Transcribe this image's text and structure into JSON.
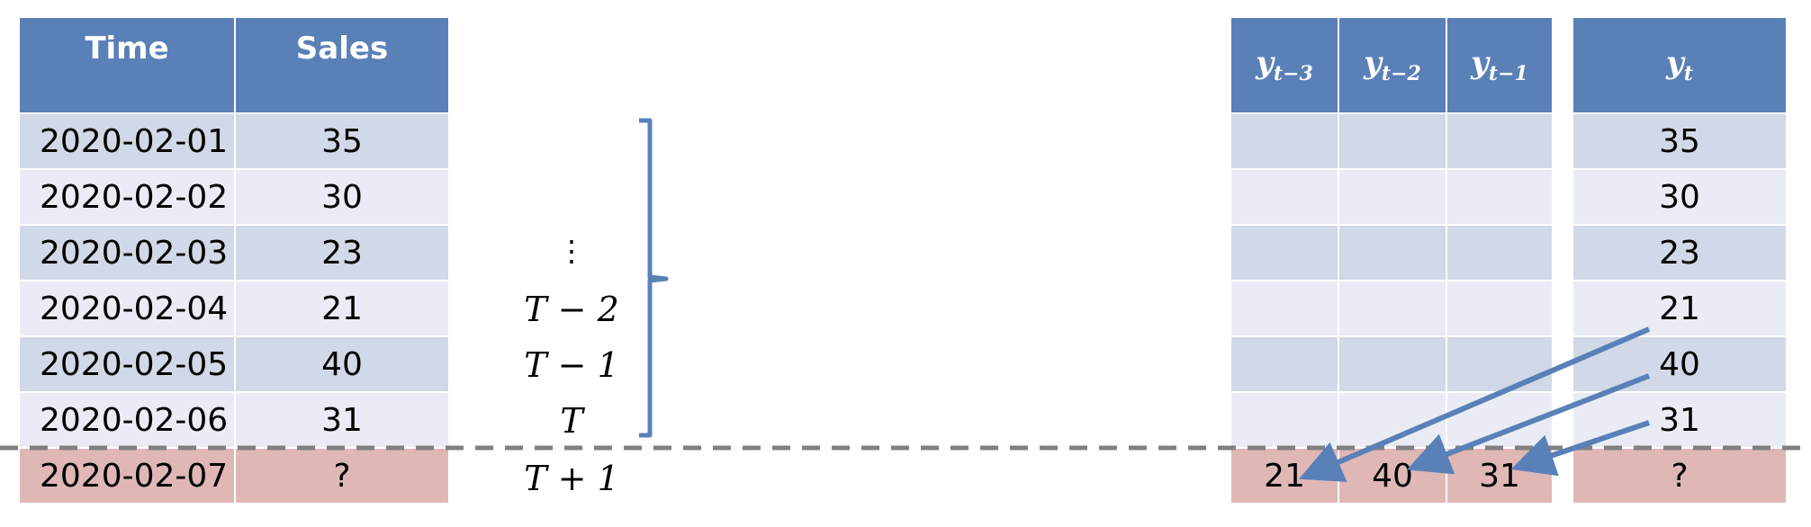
{
  "left_table": {
    "headers": [
      "Time",
      "Sales"
    ],
    "rows": [
      {
        "time": "2020-02-01",
        "sales": "35"
      },
      {
        "time": "2020-02-02",
        "sales": "30"
      },
      {
        "time": "2020-02-03",
        "sales": "23"
      },
      {
        "time": "2020-02-04",
        "sales": "21"
      },
      {
        "time": "2020-02-05",
        "sales": "40"
      },
      {
        "time": "2020-02-06",
        "sales": "31"
      }
    ],
    "forecast_row": {
      "time": "2020-02-07",
      "sales": "?"
    }
  },
  "index_labels": {
    "dots": "⋮",
    "t_minus_2": "T − 2",
    "t_minus_1": "T − 1",
    "t": "T",
    "t_plus_1": "T + 1"
  },
  "lag_table": {
    "headers": [
      {
        "base": "y",
        "sub": "t−3"
      },
      {
        "base": "y",
        "sub": "t−2"
      },
      {
        "base": "y",
        "sub": "t−1"
      }
    ],
    "forecast_row": [
      "21",
      "40",
      "31"
    ]
  },
  "target_table": {
    "header": {
      "base": "y",
      "sub": "t"
    },
    "values": [
      "35",
      "30",
      "23",
      "21",
      "40",
      "31"
    ],
    "forecast_value": "?"
  },
  "colors": {
    "header": "#5a80b8",
    "row_odd": "#d1d8e7",
    "row_even": "#e9ecf4",
    "forecast_row": "#dfb8b5",
    "arrow": "#5a80b8",
    "bracket": "#5a80b8",
    "divider": "#808080"
  }
}
